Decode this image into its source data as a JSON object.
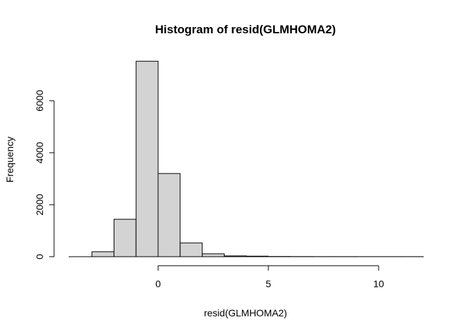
{
  "chart_data": {
    "type": "bar",
    "title": "Histogram of resid(GLMHOMA2)",
    "xlabel": "resid(GLMHOMA2)",
    "ylabel": "Frequency",
    "bin_edges": [
      -3,
      -2,
      -1,
      0,
      1,
      2,
      3,
      4,
      5,
      6,
      7,
      8,
      9,
      10,
      11,
      12
    ],
    "values": [
      190,
      1440,
      7520,
      3200,
      530,
      110,
      30,
      20,
      8,
      5,
      3,
      3,
      2,
      2,
      2
    ],
    "xlim": [
      -4,
      12
    ],
    "ylim": [
      0,
      7800
    ],
    "x_ticks": [
      0,
      5,
      10
    ],
    "x_tick_labels": [
      "0",
      "5",
      "10"
    ],
    "y_ticks": [
      0,
      2000,
      4000,
      6000
    ],
    "y_tick_labels": [
      "0",
      "2000",
      "4000",
      "6000"
    ],
    "bar_color": "#d3d3d3",
    "grid": false
  }
}
